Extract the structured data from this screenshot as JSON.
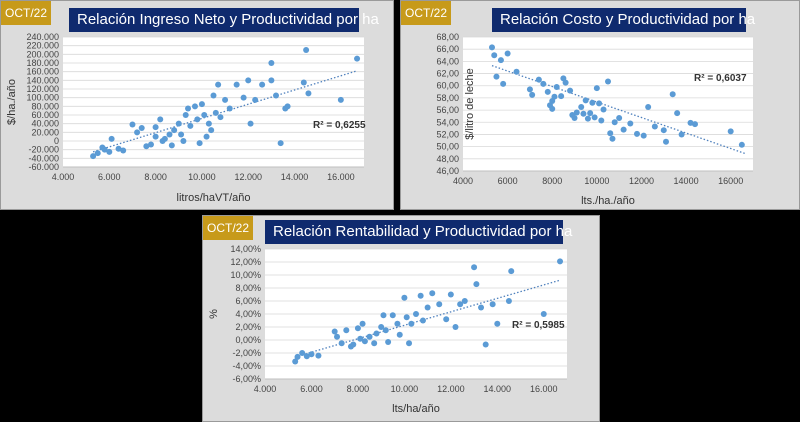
{
  "badge_color": "#c79a1a",
  "title_color": "#0f2a6e",
  "point_color": "#5b9bd5",
  "charts": [
    {
      "badge": "OCT/22",
      "title": "Relación Ingreso Neto y Productividad por ha",
      "xlabel": "litros/haVT/año",
      "ylabel": "$/ha./año",
      "r2": "R² = 0,6255",
      "xticks": [
        "4.000",
        "6.000",
        "8.000",
        "10.000",
        "12.000",
        "14.000",
        "16.000"
      ],
      "yticks": [
        "-60.000",
        "-40.000",
        "-20.000",
        "0",
        "20.000",
        "40.000",
        "60.000",
        "80.000",
        "100.000",
        "120.000",
        "140.000",
        "160.000",
        "180.000",
        "200.000",
        "220.000",
        "240.000"
      ]
    },
    {
      "badge": "OCT/22",
      "title": "Relación Costo y Productividad por ha",
      "xlabel": "lts./ha./año",
      "ylabel": "$/litro de leche",
      "r2": "R² = 0,6037",
      "xticks": [
        "4000",
        "6000",
        "8000",
        "10000",
        "12000",
        "14000",
        "16000"
      ],
      "yticks": [
        "46,00",
        "48,00",
        "50,00",
        "52,00",
        "54,00",
        "56,00",
        "58,00",
        "60,00",
        "62,00",
        "64,00",
        "66,00",
        "68,00"
      ]
    },
    {
      "badge": "OCT/22",
      "title": "Relación Rentabilidad y Productividad por ha",
      "xlabel": "lts/ha/año",
      "ylabel": "%",
      "r2": "R² = 0,5985",
      "xticks": [
        "4.000",
        "6.000",
        "8.000",
        "10.000",
        "12.000",
        "14.000",
        "16.000"
      ],
      "yticks": [
        "-6,00%",
        "-4,00%",
        "-2,00%",
        "0,00%",
        "2,00%",
        "4,00%",
        "6,00%",
        "8,00%",
        "10,00%",
        "12,00%",
        "14,00%"
      ]
    }
  ],
  "chart_data": [
    {
      "type": "scatter",
      "title": "Relación Ingreso Neto y Productividad por ha",
      "xlabel": "litros/haVT/año",
      "ylabel": "$/ha./año",
      "xlim": [
        4000,
        17000
      ],
      "ylim": [
        -60000,
        240000
      ],
      "trendline": {
        "type": "linear",
        "r2": 0.6255,
        "from": [
          5300,
          -25000
        ],
        "to": [
          16700,
          162000
        ]
      },
      "points": [
        [
          5300,
          -35000
        ],
        [
          5500,
          -28000
        ],
        [
          5700,
          -15000
        ],
        [
          5800,
          -20000
        ],
        [
          6000,
          -25000
        ],
        [
          6100,
          5000
        ],
        [
          6400,
          -18000
        ],
        [
          6600,
          -22000
        ],
        [
          7000,
          38000
        ],
        [
          7200,
          20000
        ],
        [
          7400,
          30000
        ],
        [
          7600,
          -12000
        ],
        [
          7800,
          -8000
        ],
        [
          8000,
          32000
        ],
        [
          8000,
          10000
        ],
        [
          8200,
          50000
        ],
        [
          8300,
          0
        ],
        [
          8400,
          5000
        ],
        [
          8600,
          15000
        ],
        [
          8700,
          -10000
        ],
        [
          8800,
          25000
        ],
        [
          9000,
          40000
        ],
        [
          9100,
          15000
        ],
        [
          9200,
          0
        ],
        [
          9300,
          60000
        ],
        [
          9400,
          75000
        ],
        [
          9500,
          35000
        ],
        [
          9700,
          80000
        ],
        [
          9800,
          50000
        ],
        [
          9900,
          -5000
        ],
        [
          10000,
          85000
        ],
        [
          10100,
          60000
        ],
        [
          10200,
          10000
        ],
        [
          10300,
          40000
        ],
        [
          10400,
          25000
        ],
        [
          10500,
          105000
        ],
        [
          10600,
          65000
        ],
        [
          10700,
          130000
        ],
        [
          10800,
          55000
        ],
        [
          11000,
          95000
        ],
        [
          11200,
          75000
        ],
        [
          11500,
          130000
        ],
        [
          11800,
          100000
        ],
        [
          12000,
          140000
        ],
        [
          12100,
          40000
        ],
        [
          12300,
          95000
        ],
        [
          12600,
          130000
        ],
        [
          13000,
          180000
        ],
        [
          13000,
          140000
        ],
        [
          13200,
          105000
        ],
        [
          13400,
          -5000
        ],
        [
          13600,
          75000
        ],
        [
          13700,
          80000
        ],
        [
          14400,
          135000
        ],
        [
          14500,
          210000
        ],
        [
          14600,
          110000
        ],
        [
          16000,
          95000
        ],
        [
          16700,
          190000
        ]
      ]
    },
    {
      "type": "scatter",
      "title": "Relación Costo y Productividad por ha",
      "xlabel": "lts./ha./año",
      "ylabel": "$/litro de leche",
      "xlim": [
        4000,
        17000
      ],
      "ylim": [
        46,
        68
      ],
      "trendline": {
        "type": "linear",
        "r2": 0.6037,
        "from": [
          5300,
          63.3
        ],
        "to": [
          16700,
          48.8
        ]
      },
      "points": [
        [
          5300,
          66.3
        ],
        [
          5400,
          65
        ],
        [
          5500,
          61.5
        ],
        [
          5700,
          64.2
        ],
        [
          5800,
          60.3
        ],
        [
          6000,
          65.3
        ],
        [
          6400,
          62.3
        ],
        [
          7000,
          59.4
        ],
        [
          7100,
          58.5
        ],
        [
          7400,
          61
        ],
        [
          7600,
          60.3
        ],
        [
          7800,
          59
        ],
        [
          7900,
          56.8
        ],
        [
          8000,
          56.2
        ],
        [
          8000,
          57.5
        ],
        [
          8100,
          58.2
        ],
        [
          8200,
          59.8
        ],
        [
          8400,
          58.3
        ],
        [
          8500,
          61.2
        ],
        [
          8600,
          60.5
        ],
        [
          8800,
          59.2
        ],
        [
          8900,
          55.2
        ],
        [
          9000,
          54.7
        ],
        [
          9100,
          55.6
        ],
        [
          9300,
          56.5
        ],
        [
          9400,
          55.4
        ],
        [
          9500,
          57.6
        ],
        [
          9600,
          54.6
        ],
        [
          9700,
          55.5
        ],
        [
          9800,
          57.2
        ],
        [
          9900,
          54.8
        ],
        [
          10000,
          59.6
        ],
        [
          10100,
          57.1
        ],
        [
          10200,
          54.3
        ],
        [
          10300,
          56.1
        ],
        [
          10500,
          60.7
        ],
        [
          10600,
          52.2
        ],
        [
          10700,
          51.3
        ],
        [
          10800,
          54
        ],
        [
          11000,
          54.7
        ],
        [
          11200,
          52.8
        ],
        [
          11500,
          53.8
        ],
        [
          11800,
          52.1
        ],
        [
          12100,
          51.8
        ],
        [
          12300,
          56.5
        ],
        [
          12600,
          53.3
        ],
        [
          13000,
          52.7
        ],
        [
          13100,
          50.8
        ],
        [
          13400,
          58.6
        ],
        [
          13600,
          55.5
        ],
        [
          13800,
          52
        ],
        [
          14200,
          53.9
        ],
        [
          14400,
          53.7
        ],
        [
          16000,
          52.5
        ],
        [
          16500,
          50.3
        ]
      ]
    },
    {
      "type": "scatter",
      "title": "Relación Rentabilidad y Productividad por ha",
      "xlabel": "lts/ha/año",
      "ylabel": "%",
      "xlim": [
        4000,
        17000
      ],
      "ylim": [
        -6,
        14
      ],
      "trendline": {
        "type": "linear",
        "r2": 0.5985,
        "from": [
          5300,
          -2.6
        ],
        "to": [
          16700,
          9.2
        ]
      },
      "points": [
        [
          5300,
          -3.3
        ],
        [
          5400,
          -2.6
        ],
        [
          5600,
          -2
        ],
        [
          5800,
          -2.5
        ],
        [
          6000,
          -2.2
        ],
        [
          6300,
          -2.4
        ],
        [
          7000,
          1.3
        ],
        [
          7100,
          0.5
        ],
        [
          7300,
          -0.5
        ],
        [
          7500,
          1.5
        ],
        [
          7700,
          -1
        ],
        [
          7800,
          -0.7
        ],
        [
          8000,
          1.8
        ],
        [
          8100,
          0.2
        ],
        [
          8200,
          2.5
        ],
        [
          8300,
          -0.2
        ],
        [
          8500,
          0.5
        ],
        [
          8700,
          -0.5
        ],
        [
          8800,
          1
        ],
        [
          9000,
          2
        ],
        [
          9100,
          3.8
        ],
        [
          9200,
          1.5
        ],
        [
          9300,
          -0.3
        ],
        [
          9500,
          3.8
        ],
        [
          9700,
          2.5
        ],
        [
          9800,
          0.8
        ],
        [
          10000,
          6.5
        ],
        [
          10100,
          3.5
        ],
        [
          10200,
          -0.5
        ],
        [
          10300,
          2.5
        ],
        [
          10500,
          4
        ],
        [
          10700,
          6.8
        ],
        [
          10800,
          3
        ],
        [
          11000,
          5
        ],
        [
          11200,
          7.2
        ],
        [
          11500,
          5.5
        ],
        [
          11800,
          3.2
        ],
        [
          12000,
          7
        ],
        [
          12200,
          2
        ],
        [
          12400,
          5.5
        ],
        [
          12600,
          6
        ],
        [
          13000,
          11.2
        ],
        [
          13100,
          8.6
        ],
        [
          13300,
          5
        ],
        [
          13500,
          -0.7
        ],
        [
          13800,
          5.5
        ],
        [
          14000,
          2.5
        ],
        [
          14500,
          6
        ],
        [
          14600,
          10.6
        ],
        [
          16000,
          4
        ],
        [
          16700,
          12.1
        ]
      ]
    }
  ]
}
